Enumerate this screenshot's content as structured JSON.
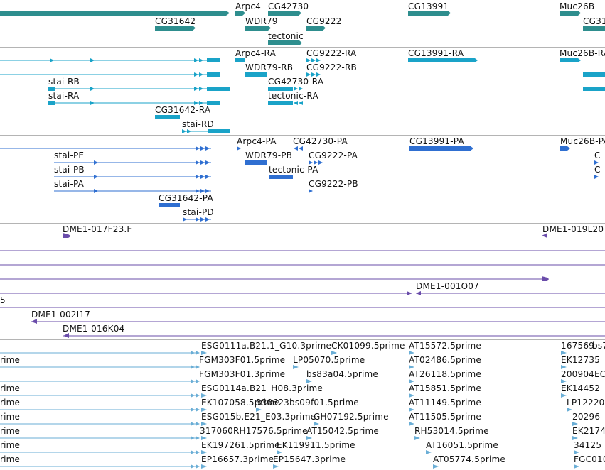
{
  "colors": {
    "gene": "#2e8e8e",
    "mrna": "#1aa3c8",
    "protein": "#2f6fd1",
    "bac": "#6a4caa",
    "est": "#6aaed6",
    "separator": "#b4b4b4"
  },
  "gene_track": {
    "labels": [
      "Arpc4",
      "CG42730",
      "CG13991",
      "Muc26B",
      "CG31642",
      "WDR79",
      "CG9222",
      "CG31",
      "tectonic"
    ]
  },
  "mrna_track": {
    "labels": [
      "Arpc4-RA",
      "CG9222-RA",
      "CG13991-RA",
      "Muc26B-RA",
      "WDR79-RB",
      "CG9222-RB",
      "stai-RB",
      "CG42730-RA",
      "stai-RA",
      "tectonic-RA",
      "CG31642-RA",
      "stai-RD"
    ]
  },
  "protein_track": {
    "labels": [
      "Arpc4-PA",
      "CG42730-PA",
      "CG13991-PA",
      "Muc26B-PA",
      "stai-PE",
      "WDR79-PB",
      "CG9222-PA",
      "C",
      "stai-PB",
      "tectonic-PA",
      "C",
      "stai-PA",
      "CG9222-PB",
      "CG31642-PA",
      "stai-PD"
    ]
  },
  "bac_track": {
    "labels": [
      "DME1-017F23.F",
      "DME1-019L20",
      "DME1-001O07",
      "5",
      "DME1-002I17",
      "DME1-016K04"
    ]
  },
  "est_track": {
    "labels": [
      "ESG0111a.B21.1_G10.3prime",
      "CK01099.5prime",
      "AT15572.5prime",
      "167569",
      "bs7",
      "rime",
      "FGM303F01.5prime",
      "LP05070.5prime",
      "AT02486.5prime",
      "EK12735",
      "FGM303F01.3prime",
      "bs83a04.5prime",
      "AT26118.5prime",
      "200904",
      "EC",
      "rime",
      "ESG0114a.B21_H08.3prime",
      "AT15851.5prime",
      "EK14452",
      "rime",
      "EK107058.5prime",
      "330623bs09f01.5prime",
      "AT11149.5prime",
      "LP12220",
      "rime",
      "ESG015b.E21_E03.3prime",
      "GH07192.5prime",
      "AT11505.5prime",
      "20296",
      "rime",
      "317060RH17576.5prime",
      "AT15042.5prime",
      "RH53014.5prime",
      "EK2174",
      "rime",
      "EK197261.5prime",
      "EK119911.5prime",
      "AT16051.5prime",
      "34125",
      "rime",
      "EP16657.3prime",
      "EP15647.3prime",
      "AT05774.5prime",
      "FGC010"
    ]
  }
}
